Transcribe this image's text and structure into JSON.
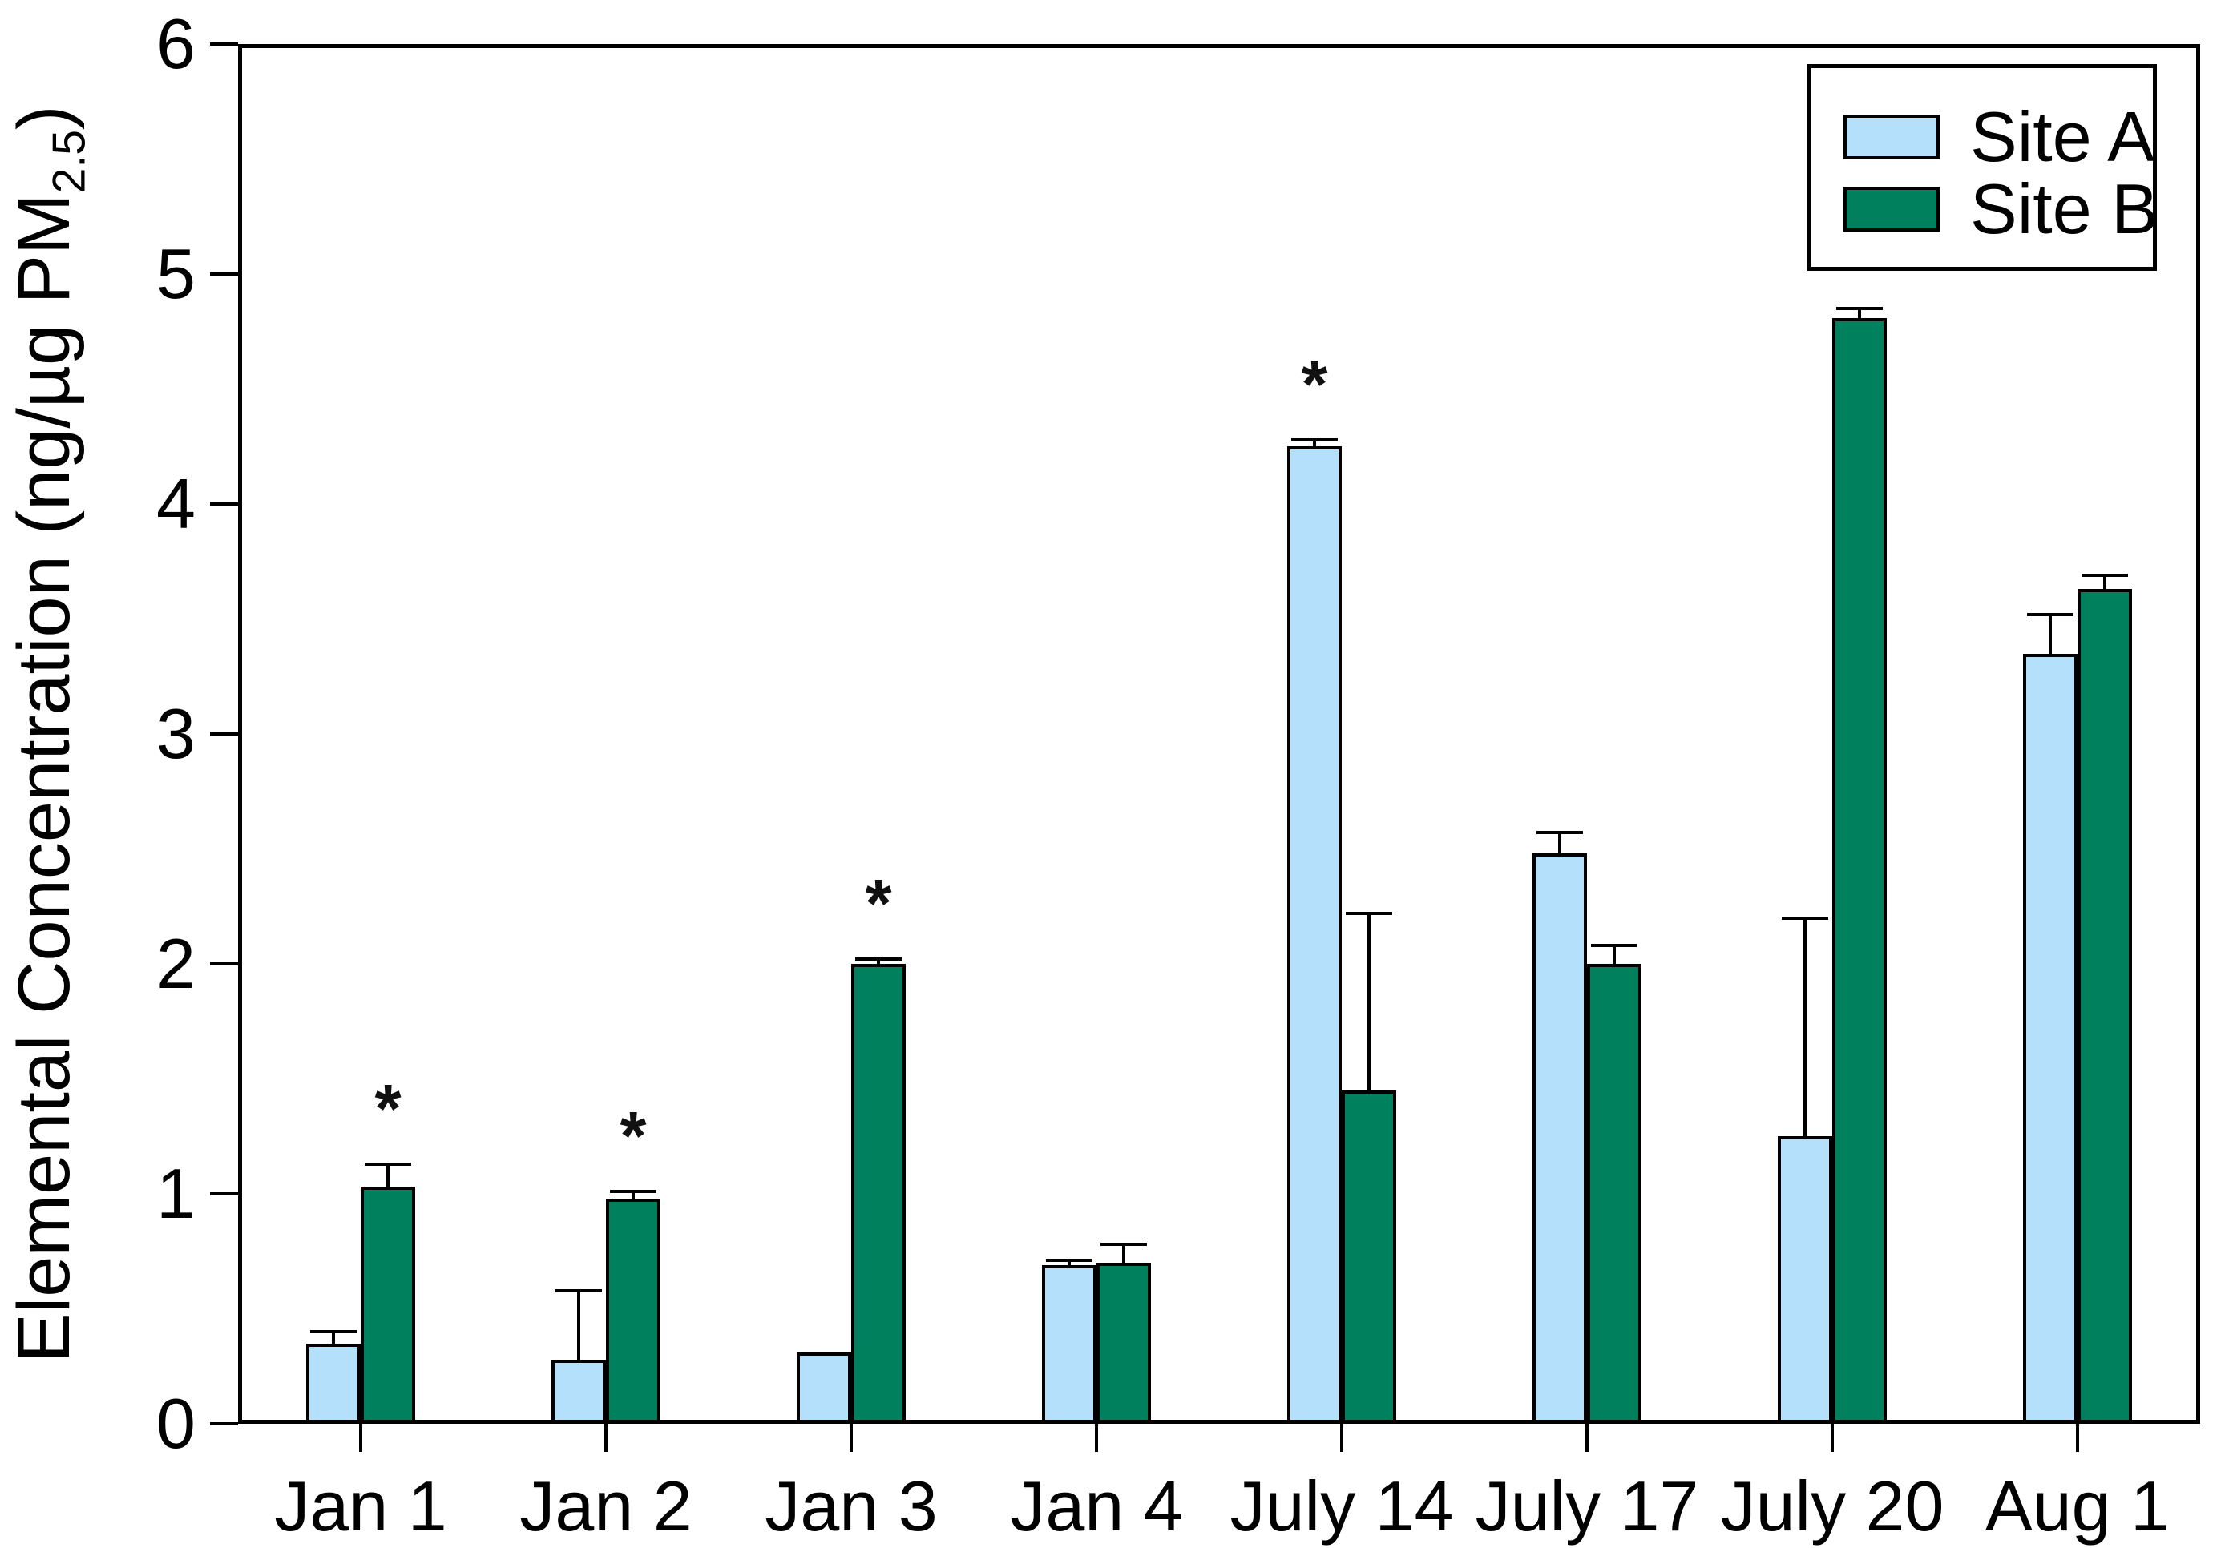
{
  "chart_data": {
    "type": "bar",
    "title": "",
    "categories": [
      "Jan 1",
      "Jan 2",
      "Jan 3",
      "Jan 4",
      "July 14",
      "July 17",
      "July 20",
      "Aug 1"
    ],
    "series": [
      {
        "name": "Site A",
        "color": "#b5e0fb",
        "values": [
          0.35,
          0.28,
          0.31,
          0.69,
          4.25,
          2.48,
          1.25,
          3.35
        ],
        "errors_up": [
          0.05,
          0.3,
          0,
          0.02,
          0.03,
          0.09,
          0.95,
          0.17
        ],
        "significant": [
          false,
          false,
          false,
          false,
          true,
          false,
          false,
          false
        ]
      },
      {
        "name": "Site B",
        "color": "#00805c",
        "values": [
          1.03,
          0.98,
          2.0,
          0.7,
          1.45,
          2.0,
          4.81,
          3.63
        ],
        "errors_up": [
          0.1,
          0.03,
          0.02,
          0.08,
          0.77,
          0.08,
          0.04,
          0.06
        ],
        "significant": [
          true,
          true,
          true,
          false,
          false,
          false,
          true,
          false
        ]
      }
    ],
    "ylabel": {
      "pre": "Elemental Concentration (ng/µg PM",
      "sub": "2.5",
      "post": ")"
    },
    "xlabel": "",
    "ylim": [
      0,
      6
    ],
    "yticks": [
      "0",
      "1",
      "2",
      "3",
      "4",
      "5",
      "6"
    ],
    "significance_marker": "*",
    "grid": false,
    "legend": {
      "position": "top-right",
      "items": [
        "Site A",
        "Site B"
      ]
    },
    "axis_color": "#000000",
    "background_color": "#ffffff"
  }
}
